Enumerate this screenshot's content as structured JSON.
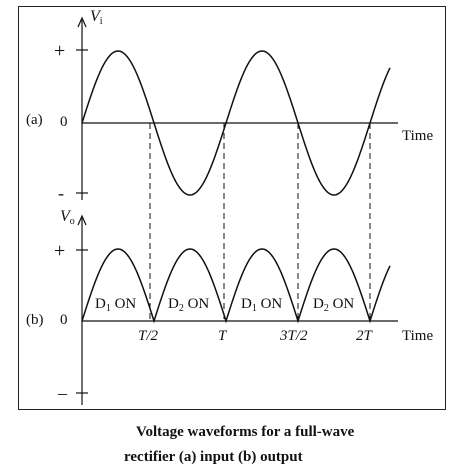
{
  "panel_a": {
    "tag": "(a)",
    "axis_symbol": "V",
    "axis_subscript": "i",
    "plus": "+",
    "zero": "0",
    "minus": "-",
    "time_label": "Time"
  },
  "panel_b": {
    "tag": "(b)",
    "axis_symbol": "V",
    "axis_subscript": "o",
    "plus": "+",
    "zero": "0",
    "minus": "–",
    "time_label": "Time",
    "regions": [
      {
        "main": "D",
        "sub": "1",
        "tail": " ON"
      },
      {
        "main": "D",
        "sub": "2",
        "tail": " ON"
      },
      {
        "main": "D",
        "sub": "1",
        "tail": " ON"
      },
      {
        "main": "D",
        "sub": "2",
        "tail": " ON"
      }
    ],
    "ticks": {
      "t_half": "T/2",
      "t": "T",
      "t_3half": "3T/2",
      "t_2": "2T"
    }
  },
  "caption": {
    "line1": "Voltage waveforms for a full-wave",
    "line2": "rectifier (a)  input (b)  output"
  }
}
